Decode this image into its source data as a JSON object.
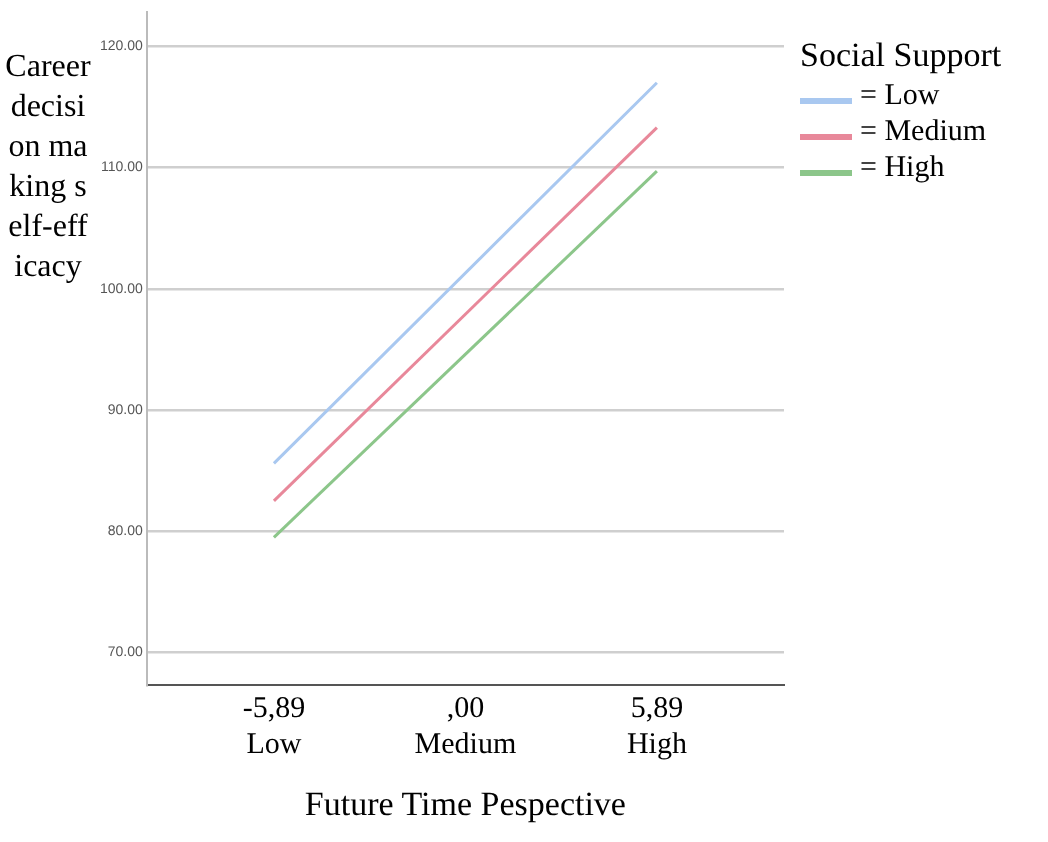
{
  "chart_data": {
    "type": "line",
    "ylabel": "Career decision making self-efficacy",
    "xlabel": "Future Time Pespective",
    "legend_title": "Social Support",
    "legend": "top right",
    "grid": "y",
    "marker": "none",
    "line_style": "solid",
    "x": [
      -5.89,
      5.89
    ],
    "xlim": [
      -9.8,
      9.8
    ],
    "xticks": [
      {
        "value": -5.89,
        "label": "-5,89\nLow"
      },
      {
        "value": 0,
        "label": ",00\nMedium"
      },
      {
        "value": 5.89,
        "label": "5,89\nHigh"
      }
    ],
    "ylim": [
      67.3,
      122.8
    ],
    "yticks": [
      {
        "value": 70,
        "label": "70.00"
      },
      {
        "value": 80,
        "label": "80.00"
      },
      {
        "value": 90,
        "label": "90.00"
      },
      {
        "value": 100,
        "label": "100.00"
      },
      {
        "value": 110,
        "label": "110.00"
      },
      {
        "value": 120,
        "label": "120.00"
      }
    ],
    "series": [
      {
        "name": "= Low",
        "color": "#a9c8f0",
        "values": [
          85.6,
          117.0
        ]
      },
      {
        "name": "= Medium",
        "color": "#e8889a",
        "values": [
          82.5,
          113.3
        ]
      },
      {
        "name": "= High",
        "color": "#8cc68a",
        "values": [
          79.5,
          109.7
        ]
      }
    ]
  }
}
